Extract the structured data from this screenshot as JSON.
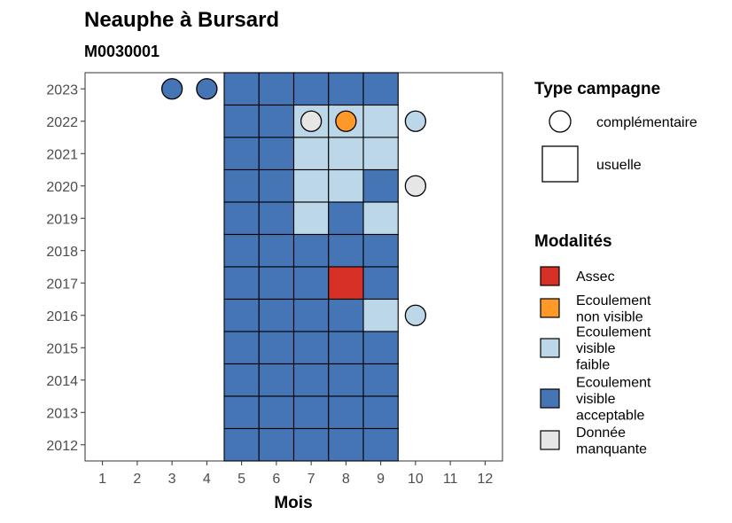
{
  "chart_data": {
    "type": "heatmap",
    "title": "Neauphe à Bursard",
    "subtitle": "M0030001",
    "xlabel": "Mois",
    "ylabel": "",
    "x_ticks": [
      "1",
      "2",
      "3",
      "4",
      "5",
      "6",
      "7",
      "8",
      "9",
      "10",
      "11",
      "12"
    ],
    "y_ticks": [
      "2012",
      "2013",
      "2014",
      "2015",
      "2016",
      "2017",
      "2018",
      "2019",
      "2020",
      "2021",
      "2022",
      "2023"
    ],
    "xlim": [
      0.5,
      12.5
    ],
    "ylim": [
      2011.5,
      2023.5
    ],
    "grid": false,
    "colors": {
      "assec": "#d73027",
      "non_visible": "#fe9929",
      "faible": "#bcd7e8",
      "acceptable": "#4575b4",
      "manquante": "#e6e6e6"
    },
    "legends": {
      "campagne": {
        "title": "Type campagne",
        "position": "right",
        "items": [
          {
            "key": "complementaire",
            "label": "complémentaire",
            "shape": "circle"
          },
          {
            "key": "usuelle",
            "label": "usuelle",
            "shape": "square"
          }
        ]
      },
      "modalites": {
        "title": "Modalités",
        "position": "right",
        "items": [
          {
            "key": "assec",
            "lines": [
              "Assec"
            ]
          },
          {
            "key": "non_visible",
            "lines": [
              "Ecoulement",
              "non visible"
            ]
          },
          {
            "key": "faible",
            "lines": [
              "Ecoulement",
              "visible",
              "faible"
            ]
          },
          {
            "key": "acceptable",
            "lines": [
              "Ecoulement",
              "visible",
              "acceptable"
            ]
          },
          {
            "key": "manquante",
            "lines": [
              "Donnée",
              "manquante"
            ]
          }
        ]
      }
    },
    "usuelle": [
      {
        "year": 2023,
        "months": [
          "acceptable",
          "acceptable",
          "acceptable",
          "acceptable",
          "acceptable"
        ]
      },
      {
        "year": 2022,
        "months": [
          "acceptable",
          "acceptable",
          "faible",
          "faible",
          "faible"
        ]
      },
      {
        "year": 2021,
        "months": [
          "acceptable",
          "acceptable",
          "faible",
          "faible",
          "faible"
        ]
      },
      {
        "year": 2020,
        "months": [
          "acceptable",
          "acceptable",
          "faible",
          "faible",
          "acceptable"
        ]
      },
      {
        "year": 2019,
        "months": [
          "acceptable",
          "acceptable",
          "faible",
          "acceptable",
          "faible"
        ]
      },
      {
        "year": 2018,
        "months": [
          "acceptable",
          "acceptable",
          "acceptable",
          "acceptable",
          "acceptable"
        ]
      },
      {
        "year": 2017,
        "months": [
          "acceptable",
          "acceptable",
          "acceptable",
          "assec",
          "acceptable"
        ]
      },
      {
        "year": 2016,
        "months": [
          "acceptable",
          "acceptable",
          "acceptable",
          "acceptable",
          "faible"
        ]
      },
      {
        "year": 2015,
        "months": [
          "acceptable",
          "acceptable",
          "acceptable",
          "acceptable",
          "acceptable"
        ]
      },
      {
        "year": 2014,
        "months": [
          "acceptable",
          "acceptable",
          "acceptable",
          "acceptable",
          "acceptable"
        ]
      },
      {
        "year": 2013,
        "months": [
          "acceptable",
          "acceptable",
          "acceptable",
          "acceptable",
          "acceptable"
        ]
      },
      {
        "year": 2012,
        "months": [
          "acceptable",
          "acceptable",
          "acceptable",
          "acceptable",
          "acceptable"
        ]
      }
    ],
    "usuelle_month_range": [
      5,
      9
    ],
    "complementaire": [
      {
        "year": 2023,
        "month": 3,
        "modalite": "acceptable"
      },
      {
        "year": 2023,
        "month": 4,
        "modalite": "acceptable"
      },
      {
        "year": 2022,
        "month": 7,
        "modalite": "manquante"
      },
      {
        "year": 2022,
        "month": 8,
        "modalite": "non_visible"
      },
      {
        "year": 2022,
        "month": 10,
        "modalite": "faible"
      },
      {
        "year": 2020,
        "month": 10,
        "modalite": "manquante"
      },
      {
        "year": 2016,
        "month": 10,
        "modalite": "faible"
      }
    ]
  }
}
